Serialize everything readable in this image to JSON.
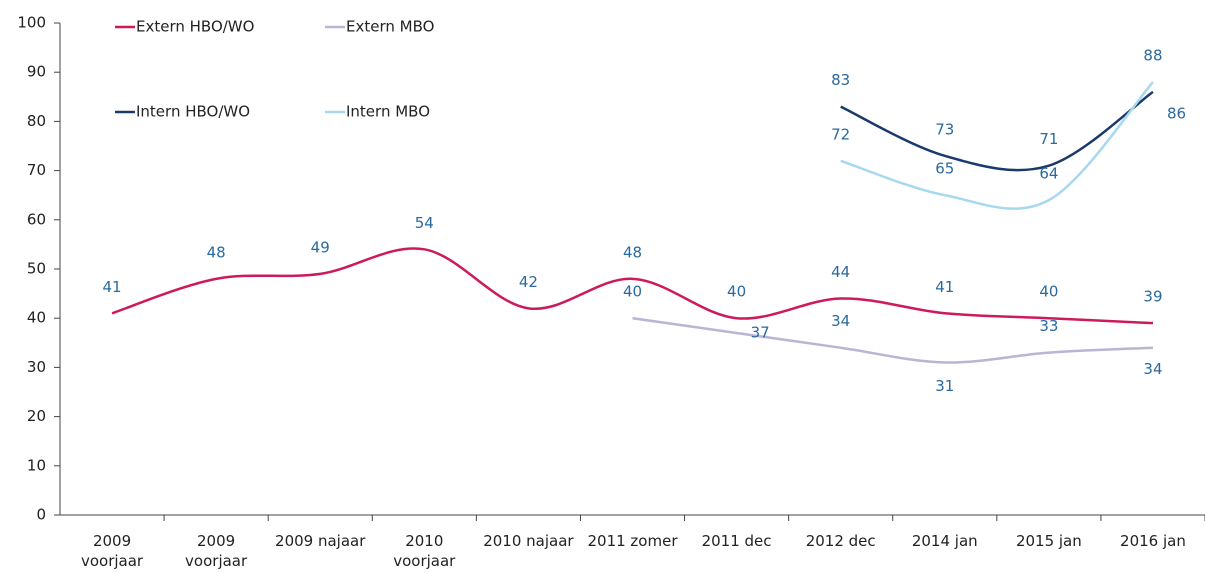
{
  "chart_data": {
    "type": "line",
    "categories": [
      "2009 voorjaar",
      "2009 voorjaar",
      "2009 najaar",
      "2010 voorjaar",
      "2010 najaar",
      "2011 zomer",
      "2011 dec",
      "2012 dec",
      "2014 jan",
      "2015 jan",
      "2016 jan"
    ],
    "series": [
      {
        "name": "Extern HBO/WO",
        "color": "#cc1a5c",
        "values": [
          41,
          48,
          49,
          54,
          42,
          48,
          40,
          44,
          41,
          40,
          39
        ]
      },
      {
        "name": "Extern MBO",
        "color": "#bcb4d4",
        "values": [
          null,
          null,
          null,
          null,
          null,
          40,
          37,
          34,
          31,
          33,
          34
        ]
      },
      {
        "name": "Intern HBO/WO",
        "color": "#1a3a6c",
        "values": [
          null,
          null,
          null,
          null,
          null,
          null,
          null,
          83,
          73,
          71,
          86
        ]
      },
      {
        "name": "Intern MBO",
        "color": "#a6d8ef",
        "values": [
          null,
          null,
          null,
          null,
          null,
          null,
          null,
          72,
          65,
          64,
          88
        ]
      }
    ],
    "ylim": [
      0,
      100
    ],
    "yticks": [
      0,
      10,
      20,
      30,
      40,
      50,
      60,
      70,
      80,
      90,
      100
    ]
  }
}
